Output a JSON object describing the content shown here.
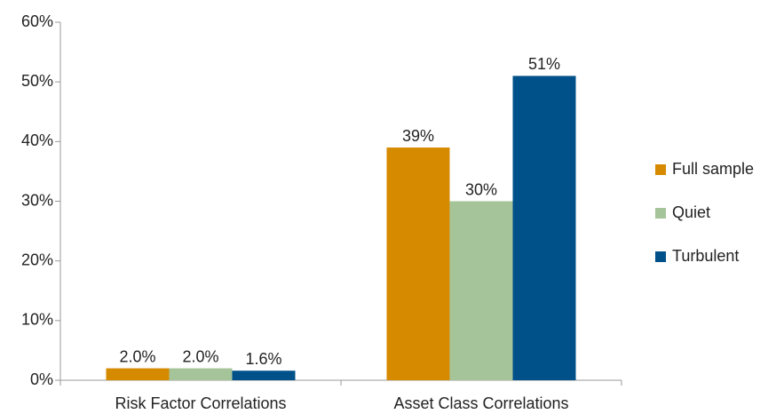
{
  "chart_data": {
    "type": "bar",
    "categories": [
      "Risk Factor Correlations",
      "Asset Class Correlations"
    ],
    "series": [
      {
        "name": "Full sample",
        "color": "#d68a00",
        "values": [
          2.0,
          39
        ],
        "value_labels": [
          "2.0%",
          "39%"
        ]
      },
      {
        "name": "Quiet",
        "color": "#a6c49a",
        "values": [
          2.0,
          30
        ],
        "value_labels": [
          "2.0%",
          "30%"
        ]
      },
      {
        "name": "Turbulent",
        "color": "#00508a",
        "values": [
          1.6,
          51
        ],
        "value_labels": [
          "1.6%",
          "51%"
        ]
      }
    ],
    "ylim": [
      0,
      60
    ],
    "yticks": [
      {
        "value": 0,
        "label": "0%"
      },
      {
        "value": 10,
        "label": "10%"
      },
      {
        "value": 20,
        "label": "20%"
      },
      {
        "value": 30,
        "label": "30%"
      },
      {
        "value": 40,
        "label": "40%"
      },
      {
        "value": 50,
        "label": "50%"
      },
      {
        "value": 60,
        "label": "60%"
      }
    ],
    "legend": "right"
  }
}
